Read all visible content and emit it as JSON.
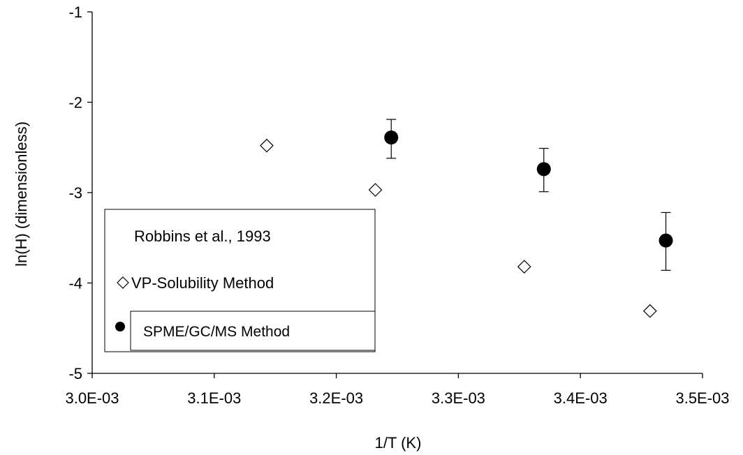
{
  "chart_data": {
    "type": "scatter",
    "title": "",
    "xlabel": "1/T  (K)",
    "ylabel": "ln(H)  (dimensionless)",
    "xlim": [
      0.003,
      0.0035
    ],
    "ylim": [
      -5,
      -1
    ],
    "x_tick_values": [
      0.003,
      0.0031,
      0.0032,
      0.0033,
      0.0034,
      0.0035
    ],
    "x_tick_labels": [
      "3.0E-03",
      "3.1E-03",
      "3.2E-03",
      "3.3E-03",
      "3.4E-03",
      "3.5E-03"
    ],
    "y_tick_values": [
      -1,
      -2,
      -3,
      -4,
      -5
    ],
    "y_tick_labels": [
      "-1",
      "-2",
      "-3",
      "-4",
      "-5"
    ],
    "grid": false,
    "legend_placement": "lower-left",
    "legend_header": "Robbins et al., 1993",
    "series": [
      {
        "name": "VP-Solubility Method",
        "marker": "diamond-open",
        "color": "#000000",
        "x": [
          0.003143,
          0.003232,
          0.003354,
          0.003457
        ],
        "y": [
          -2.48,
          -2.97,
          -3.82,
          -4.31
        ]
      },
      {
        "name": "SPME/GC/MS Method",
        "marker": "circle-filled",
        "color": "#000000",
        "x": [
          0.003245,
          0.00337,
          0.00347
        ],
        "y": [
          -2.39,
          -2.74,
          -3.53
        ],
        "err_low": [
          0.23,
          0.25,
          0.33
        ],
        "err_high": [
          0.2,
          0.23,
          0.31
        ]
      }
    ]
  }
}
